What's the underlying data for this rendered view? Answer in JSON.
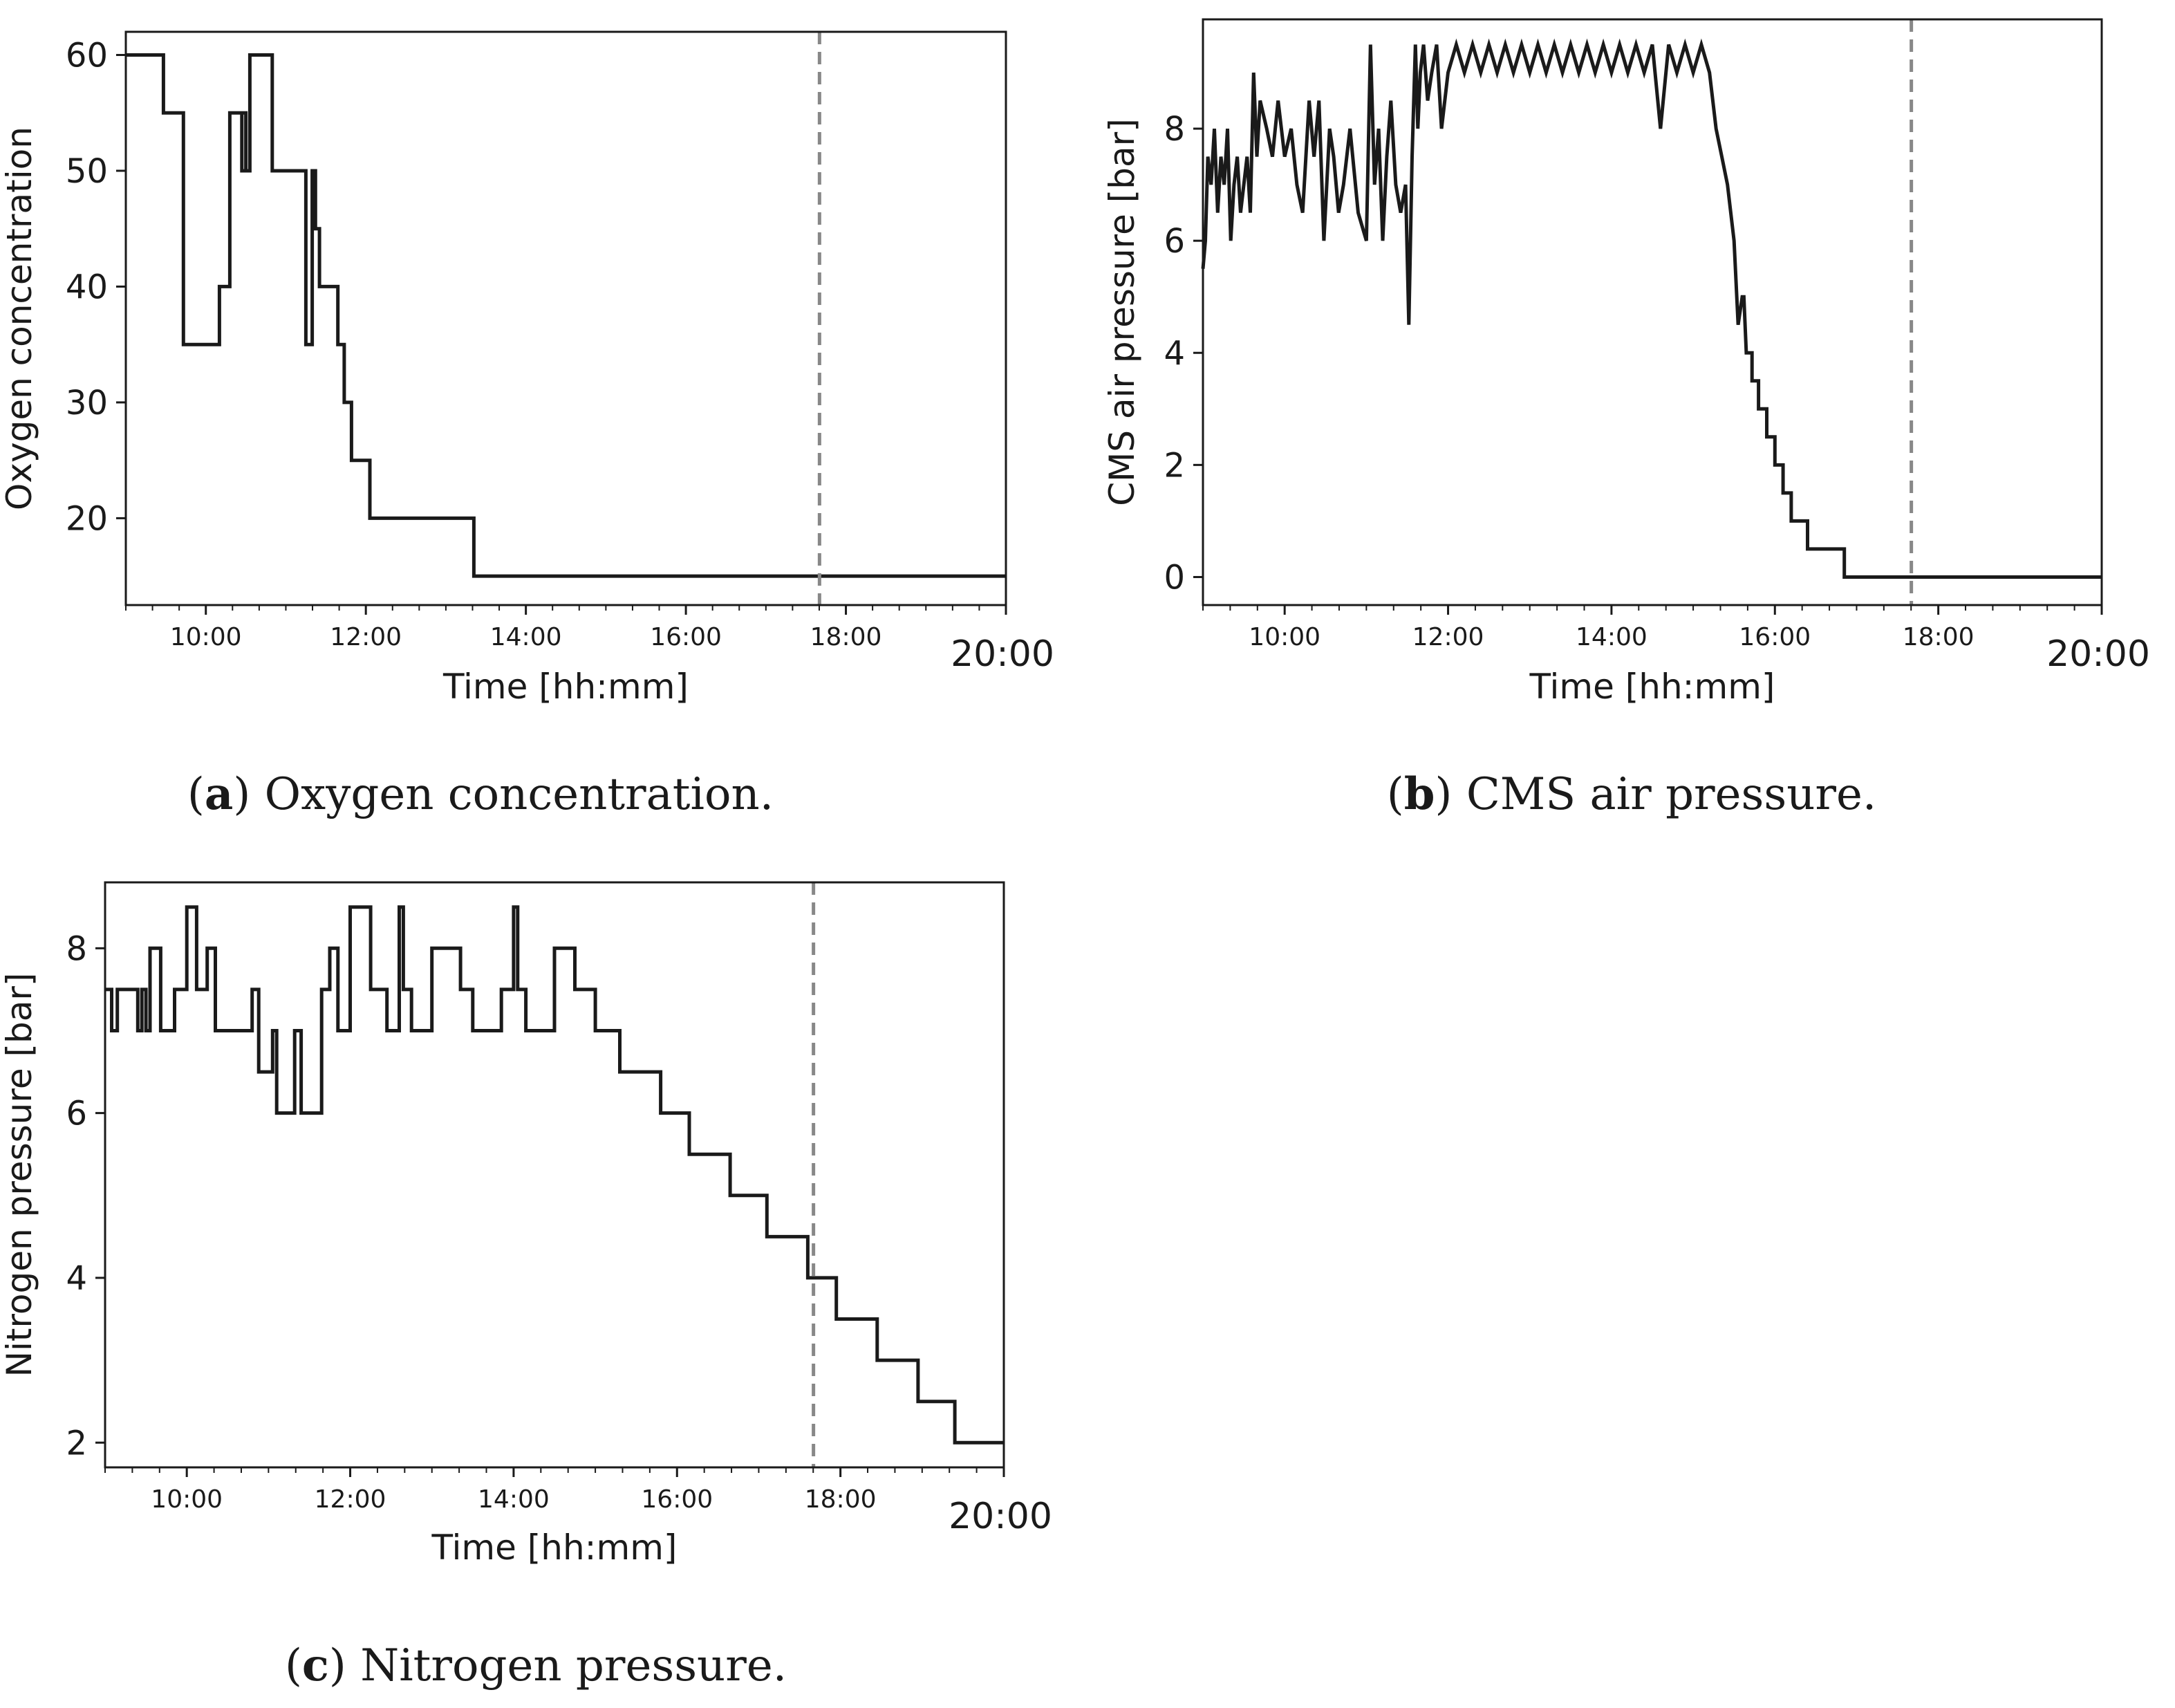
{
  "chart_data": [
    {
      "id": "a",
      "type": "line",
      "xlabel": "Time [hh:mm]",
      "ylabel": "Oxygen concentration",
      "xlim": [
        9.0,
        20.0
      ],
      "ylim": [
        12.5,
        62.0
      ],
      "xticks": [
        {
          "v": 10,
          "label": "10:00"
        },
        {
          "v": 12,
          "label": "12:00"
        },
        {
          "v": 14,
          "label": "14:00"
        },
        {
          "v": 16,
          "label": "16:00"
        },
        {
          "v": 18,
          "label": "18:00"
        },
        {
          "v": 20,
          "label": "20:00"
        }
      ],
      "yticks": [
        {
          "v": 20,
          "label": "20"
        },
        {
          "v": 30,
          "label": "30"
        },
        {
          "v": 40,
          "label": "40"
        },
        {
          "v": 50,
          "label": "50"
        },
        {
          "v": 60,
          "label": "60"
        }
      ],
      "vline": 17.67,
      "caption": {
        "letter": "a",
        "text": " Oxygen concentration.",
        "paren_open": "(",
        "paren_close": ")"
      },
      "series": [
        {
          "name": "Oxygen concentration",
          "x": [
            9.0,
            9.47,
            9.47,
            9.72,
            9.72,
            10.17,
            10.17,
            10.3,
            10.3,
            10.45,
            10.45,
            10.5,
            10.5,
            10.45,
            10.45,
            10.55,
            10.55,
            10.83,
            10.83,
            10.88,
            10.88,
            11.25,
            11.25,
            11.33,
            11.33,
            11.37,
            11.37,
            11.42,
            11.42,
            11.48,
            11.48,
            11.65,
            11.65,
            11.73,
            11.73,
            11.82,
            11.82,
            12.05,
            12.05,
            13.35,
            13.35,
            20.0
          ],
          "y": [
            60,
            60,
            55,
            55,
            35,
            35,
            40,
            40,
            55,
            55,
            50,
            50,
            55,
            55,
            50,
            50,
            60,
            60,
            50,
            50,
            50,
            50,
            35,
            35,
            50,
            50,
            45,
            45,
            40,
            40,
            40,
            40,
            35,
            35,
            30,
            30,
            25,
            25,
            20,
            20,
            15,
            15
          ]
        }
      ]
    },
    {
      "id": "b",
      "type": "line",
      "xlabel": "Time [hh:mm]",
      "ylabel": "CMS air pressure [bar]",
      "xlim": [
        9.0,
        20.0
      ],
      "ylim": [
        -0.5,
        9.95
      ],
      "xticks": [
        {
          "v": 10,
          "label": "10:00"
        },
        {
          "v": 12,
          "label": "12:00"
        },
        {
          "v": 14,
          "label": "14:00"
        },
        {
          "v": 16,
          "label": "16:00"
        },
        {
          "v": 18,
          "label": "18:00"
        },
        {
          "v": 20,
          "label": "20:00"
        }
      ],
      "yticks": [
        {
          "v": 0,
          "label": "0"
        },
        {
          "v": 2,
          "label": "2"
        },
        {
          "v": 4,
          "label": "4"
        },
        {
          "v": 6,
          "label": "6"
        },
        {
          "v": 8,
          "label": "8"
        }
      ],
      "vline": 17.67,
      "caption": {
        "letter": "b",
        "text": " CMS air pressure.",
        "paren_open": "(",
        "paren_close": ")"
      },
      "series": [
        {
          "name": "CMS air pressure",
          "x": [
            9.0,
            9.03,
            9.06,
            9.1,
            9.14,
            9.18,
            9.22,
            9.26,
            9.3,
            9.34,
            9.38,
            9.42,
            9.46,
            9.5,
            9.54,
            9.58,
            9.62,
            9.66,
            9.7,
            9.78,
            9.85,
            9.92,
            10.0,
            10.08,
            10.15,
            10.22,
            10.3,
            10.36,
            10.42,
            10.48,
            10.55,
            10.6,
            10.66,
            10.72,
            10.8,
            10.9,
            11.0,
            11.05,
            11.1,
            11.15,
            11.2,
            11.25,
            11.3,
            11.36,
            11.42,
            11.48,
            11.52,
            11.56,
            11.6,
            11.63,
            11.66,
            11.7,
            11.75,
            11.8,
            11.86,
            11.92,
            12.0,
            12.1,
            12.2,
            12.3,
            12.4,
            12.5,
            12.6,
            12.7,
            12.8,
            12.9,
            13.0,
            13.1,
            13.2,
            13.3,
            13.4,
            13.5,
            13.6,
            13.7,
            13.8,
            13.9,
            14.0,
            14.1,
            14.2,
            14.3,
            14.4,
            14.5,
            14.6,
            14.7,
            14.8,
            14.9,
            15.0,
            15.1,
            15.2,
            15.28,
            15.35,
            15.42,
            15.5,
            15.55,
            15.6,
            15.62,
            15.65,
            15.72,
            15.72,
            15.8,
            15.8,
            15.9,
            15.9,
            16.0,
            16.0,
            16.1,
            16.1,
            16.2,
            16.2,
            16.3,
            16.3,
            16.4,
            16.4,
            16.55,
            16.55,
            16.7,
            16.7,
            16.85,
            16.85,
            17.0,
            17.0,
            17.35,
            17.35,
            20.0
          ],
          "y": [
            5.5,
            6.0,
            7.5,
            7.0,
            8.0,
            6.5,
            7.5,
            7.0,
            8.0,
            6.0,
            7.0,
            7.5,
            6.5,
            7.0,
            7.5,
            6.5,
            9.0,
            7.5,
            8.5,
            8.0,
            7.5,
            8.5,
            7.5,
            8.0,
            7.0,
            6.5,
            8.5,
            7.5,
            8.5,
            6.0,
            8.0,
            7.5,
            6.5,
            7.0,
            8.0,
            6.5,
            6.0,
            9.5,
            7.0,
            8.0,
            6.0,
            7.5,
            8.5,
            7.0,
            6.5,
            7.0,
            4.5,
            7.5,
            9.5,
            8.0,
            9.0,
            9.5,
            8.5,
            9.0,
            9.5,
            8.0,
            9.0,
            9.5,
            9.0,
            9.5,
            9.0,
            9.5,
            9.0,
            9.5,
            9.0,
            9.5,
            9.0,
            9.5,
            9.0,
            9.5,
            9.0,
            9.5,
            9.0,
            9.5,
            9.0,
            9.5,
            9.0,
            9.5,
            9.0,
            9.5,
            9.0,
            9.5,
            8.0,
            9.5,
            9.0,
            9.5,
            9.0,
            9.5,
            9.0,
            8.0,
            7.5,
            7.0,
            6.0,
            4.5,
            5.0,
            5.0,
            4.0,
            4.0,
            3.5,
            3.5,
            3.0,
            3.0,
            2.5,
            2.5,
            2.0,
            2.0,
            1.5,
            1.5,
            1.0,
            1.0,
            1.0,
            1.0,
            0.5,
            0.5,
            0.5,
            0.5,
            0.5,
            0.5,
            0.0,
            0.0,
            0.0,
            0.0,
            0.0,
            0.0
          ]
        }
      ]
    },
    {
      "id": "c",
      "type": "line",
      "xlabel": "Time [hh:mm]",
      "ylabel": "Nitrogen pressure [bar]",
      "xlim": [
        9.0,
        20.0
      ],
      "ylim": [
        1.7,
        8.8
      ],
      "xticks": [
        {
          "v": 10,
          "label": "10:00"
        },
        {
          "v": 12,
          "label": "12:00"
        },
        {
          "v": 14,
          "label": "14:00"
        },
        {
          "v": 16,
          "label": "16:00"
        },
        {
          "v": 18,
          "label": "18:00"
        },
        {
          "v": 20,
          "label": "20:00"
        }
      ],
      "yticks": [
        {
          "v": 2,
          "label": "2"
        },
        {
          "v": 4,
          "label": "4"
        },
        {
          "v": 6,
          "label": "6"
        },
        {
          "v": 8,
          "label": "8"
        }
      ],
      "vline": 17.67,
      "caption": {
        "letter": "c",
        "text": " Nitrogen pressure.",
        "paren_open": "(",
        "paren_close": ")"
      },
      "series": [
        {
          "name": "Nitrogen pressure",
          "x": [
            9.0,
            9.08,
            9.08,
            9.15,
            9.15,
            9.4,
            9.4,
            9.45,
            9.45,
            9.5,
            9.5,
            9.55,
            9.55,
            9.68,
            9.68,
            9.85,
            9.85,
            10.0,
            10.0,
            10.12,
            10.12,
            10.25,
            10.25,
            10.35,
            10.35,
            10.8,
            10.8,
            10.88,
            10.88,
            11.05,
            11.05,
            11.1,
            11.1,
            11.32,
            11.32,
            11.4,
            11.4,
            11.65,
            11.65,
            11.75,
            11.75,
            11.85,
            11.85,
            12.0,
            12.0,
            12.25,
            12.25,
            12.45,
            12.45,
            12.6,
            12.6,
            12.65,
            12.65,
            12.75,
            12.75,
            13.0,
            13.0,
            13.35,
            13.35,
            13.5,
            13.5,
            13.85,
            13.85,
            14.0,
            14.0,
            14.05,
            14.05,
            14.15,
            14.15,
            14.5,
            14.5,
            14.75,
            14.75,
            15.0,
            15.0,
            15.3,
            15.3,
            15.8,
            15.8,
            16.15,
            16.15,
            16.65,
            16.65,
            17.1,
            17.1,
            17.6,
            17.6,
            17.95,
            17.95,
            18.45,
            18.45,
            18.95,
            18.95,
            19.4,
            19.4,
            19.9,
            19.9,
            20.0
          ],
          "y": [
            7.5,
            7.5,
            7.0,
            7.0,
            7.5,
            7.5,
            7.0,
            7.0,
            7.5,
            7.5,
            7.0,
            7.0,
            8.0,
            8.0,
            7.0,
            7.0,
            7.5,
            7.5,
            8.5,
            8.5,
            7.5,
            7.5,
            8.0,
            8.0,
            7.0,
            7.0,
            7.5,
            7.5,
            6.5,
            6.5,
            7.0,
            7.0,
            6.0,
            6.0,
            7.0,
            7.0,
            6.0,
            6.0,
            7.5,
            7.5,
            8.0,
            8.0,
            7.0,
            7.0,
            8.5,
            8.5,
            7.5,
            7.5,
            7.0,
            7.0,
            8.5,
            8.5,
            7.5,
            7.5,
            7.0,
            7.0,
            8.0,
            8.0,
            7.5,
            7.5,
            7.0,
            7.0,
            7.5,
            7.5,
            8.5,
            8.5,
            7.5,
            7.5,
            7.0,
            7.0,
            8.0,
            8.0,
            7.5,
            7.5,
            7.0,
            7.0,
            6.5,
            6.5,
            6.0,
            6.0,
            5.5,
            5.5,
            5.0,
            5.0,
            4.5,
            4.5,
            4.0,
            4.0,
            3.5,
            3.5,
            3.0,
            3.0,
            2.5,
            2.5,
            2.0,
            2.0,
            2.0,
            2.0
          ]
        }
      ]
    }
  ]
}
